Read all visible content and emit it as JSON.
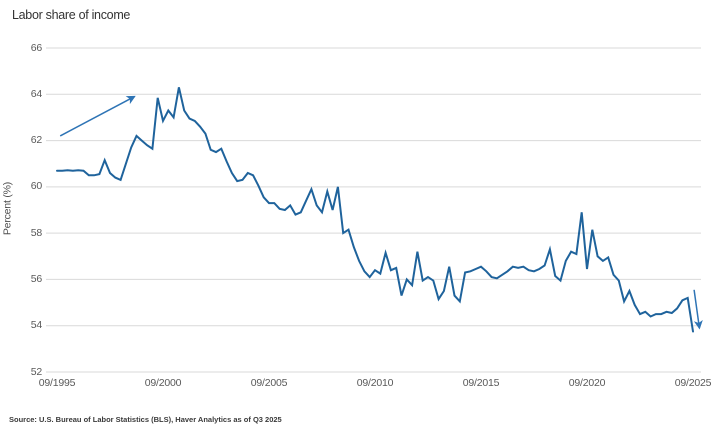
{
  "source_note": "Source: U.S. Bureau of Labor Statistics (BLS), Haver Analytics as of Q3 2025",
  "chart_data": {
    "type": "line",
    "title": "Labor share of income",
    "xlabel": "",
    "ylabel": "Percent (%)",
    "ylim": [
      52,
      66
    ],
    "y_ticks": [
      66,
      64,
      62,
      60,
      58,
      56,
      54,
      52
    ],
    "x_tick_labels": [
      "09/1995",
      "09/2000",
      "09/2005",
      "09/2010",
      "09/2015",
      "09/2020",
      "09/2025"
    ],
    "grid": "horizontal",
    "legend": "none",
    "grid_color": "#d9d9d9",
    "frequency": "quarterly",
    "start_period": "1995-Q3",
    "end_period": "2025-Q3",
    "series": [
      {
        "name": "Labor share of income, percent",
        "color": "#1f639c",
        "values": [
          60.7,
          60.7,
          60.72,
          60.7,
          60.72,
          60.7,
          60.5,
          60.5,
          60.55,
          61.15,
          60.6,
          60.4,
          60.3,
          61.0,
          61.7,
          62.2,
          62.0,
          61.8,
          61.65,
          63.85,
          62.85,
          63.3,
          63.0,
          64.3,
          63.3,
          62.95,
          62.85,
          62.6,
          62.3,
          61.6,
          61.5,
          61.65,
          61.1,
          60.6,
          60.25,
          60.3,
          60.6,
          60.5,
          60.05,
          59.55,
          59.3,
          59.3,
          59.05,
          59.0,
          59.2,
          58.8,
          58.9,
          59.4,
          59.9,
          59.2,
          58.9,
          59.8,
          59.0,
          60.0,
          58.0,
          58.15,
          57.4,
          56.8,
          56.35,
          56.1,
          56.4,
          56.25,
          57.15,
          56.4,
          56.5,
          55.3,
          56.0,
          55.75,
          57.2,
          55.95,
          56.1,
          55.95,
          55.15,
          55.5,
          56.55,
          55.3,
          55.05,
          56.3,
          56.35,
          56.45,
          56.55,
          56.35,
          56.1,
          56.05,
          56.2,
          56.35,
          56.55,
          56.5,
          56.55,
          56.4,
          56.35,
          56.45,
          56.6,
          57.3,
          56.15,
          55.95,
          56.8,
          57.2,
          57.1,
          58.9,
          56.45,
          58.15,
          57.0,
          56.8,
          56.95,
          56.2,
          55.95,
          55.05,
          55.5,
          54.9,
          54.5,
          54.6,
          54.4,
          54.5,
          54.5,
          54.6,
          54.55,
          54.75,
          55.1,
          55.2,
          53.75
        ]
      }
    ],
    "annotations": [
      {
        "type": "arrow",
        "name": "rise-arrow",
        "color": "#2e74b5",
        "from": {
          "year": 1995.9,
          "value": 62.2
        },
        "to": {
          "year": 1999.4,
          "value": 63.9
        }
      },
      {
        "type": "arrow",
        "name": "drop-arrow",
        "color": "#2e74b5",
        "from": {
          "year": 2025.8,
          "value": 55.55
        },
        "to": {
          "year": 2026.05,
          "value": 53.9
        }
      }
    ]
  }
}
